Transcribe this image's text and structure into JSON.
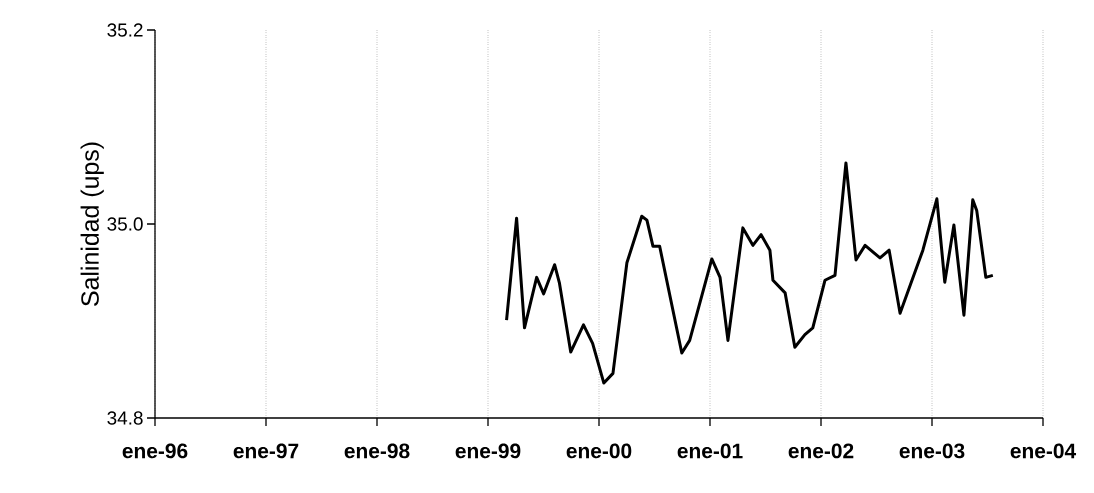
{
  "chart_data": {
    "type": "line",
    "ylabel": "Salinidad (ups)",
    "x": [
      "1999-03-03",
      "1999-04-05",
      "1999-05-01",
      "1999-06-10",
      "1999-07-03",
      "1999-08-08",
      "1999-08-24",
      "1999-09-30",
      "1999-11-11",
      "1999-12-11",
      "2000-01-17",
      "2000-02-16",
      "2000-04-02",
      "2000-05-21",
      "2000-06-07",
      "2000-06-27",
      "2000-07-19",
      "2000-09-30",
      "2000-10-26",
      "2001-01-07",
      "2001-02-03",
      "2001-03-01",
      "2001-04-19",
      "2001-05-22",
      "2001-06-18",
      "2001-07-17",
      "2001-07-27",
      "2001-09-05",
      "2001-10-07",
      "2001-11-09",
      "2001-12-05",
      "2002-01-14",
      "2002-02-16",
      "2002-03-24",
      "2002-04-26",
      "2002-05-26",
      "2002-07-14",
      "2002-08-13",
      "2002-09-18",
      "2002-12-02",
      "2003-01-17",
      "2003-02-12",
      "2003-03-14",
      "2003-04-16",
      "2003-05-15",
      "2003-05-28",
      "2003-06-27",
      "2003-07-20"
    ],
    "series": [
      {
        "color": "#000000",
        "values": [
          34.901,
          35.006,
          34.893,
          34.945,
          34.928,
          34.958,
          34.939,
          34.868,
          34.896,
          34.877,
          34.836,
          34.846,
          34.96,
          35.008,
          35.004,
          34.977,
          34.977,
          34.867,
          34.88,
          34.964,
          34.945,
          34.88,
          34.996,
          34.978,
          34.989,
          34.973,
          34.942,
          34.929,
          34.873,
          34.886,
          34.893,
          34.942,
          34.947,
          35.063,
          34.963,
          34.978,
          34.965,
          34.973,
          34.908,
          34.973,
          35.026,
          34.94,
          34.999,
          34.906,
          35.025,
          35.014,
          34.945,
          34.947
        ]
      }
    ],
    "xlim": [
      "1996-01-01",
      "2004-01-01"
    ],
    "xticks": [
      {
        "value": "1996-01-01",
        "label": "ene-96"
      },
      {
        "value": "1997-01-01",
        "label": "ene-97"
      },
      {
        "value": "1998-01-01",
        "label": "ene-98"
      },
      {
        "value": "1999-01-01",
        "label": "ene-99"
      },
      {
        "value": "2000-01-01",
        "label": "ene-00"
      },
      {
        "value": "2001-01-01",
        "label": "ene-01"
      },
      {
        "value": "2002-01-01",
        "label": "ene-02"
      },
      {
        "value": "2003-01-01",
        "label": "ene-03"
      },
      {
        "value": "2004-01-01",
        "label": "ene-04"
      }
    ],
    "ylim": [
      34.8,
      35.2
    ],
    "yticks": [
      {
        "value": 34.8,
        "label": "34.8"
      },
      {
        "value": 35.0,
        "label": "35.0"
      },
      {
        "value": 35.2,
        "label": "35.2"
      }
    ],
    "grid": "x",
    "line_style": "solid"
  }
}
